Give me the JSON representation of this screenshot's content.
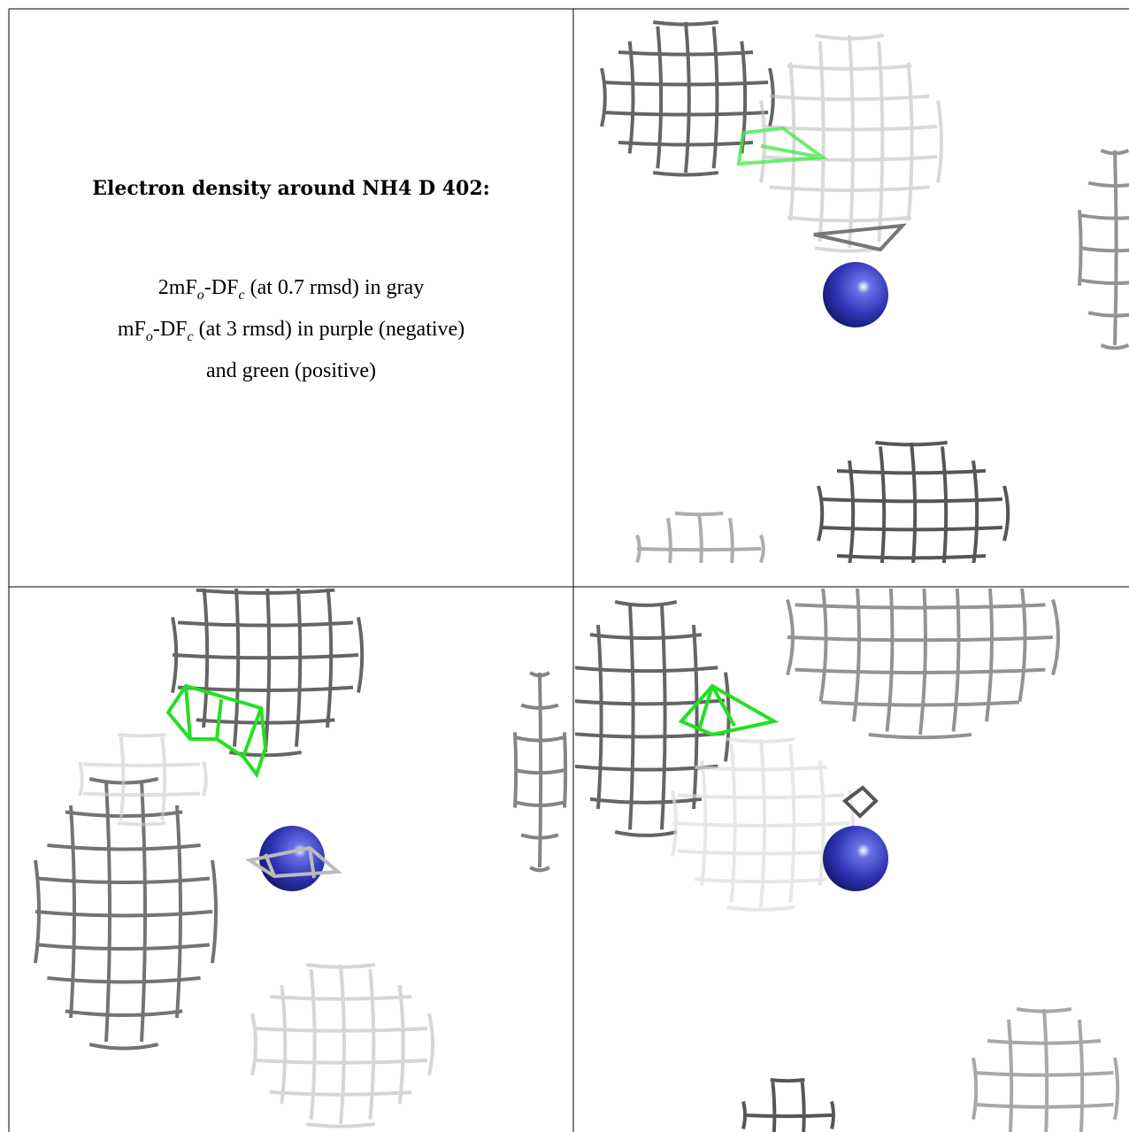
{
  "caption": {
    "title": "Electron density around NH4 D 402:",
    "lines": [
      [
        "2mF",
        "o",
        "-DF",
        "c",
        " (at 0.7 rmsd) in gray"
      ],
      [
        "mF",
        "o",
        "-DF",
        "c",
        " (at 3 rmsd) in purple (negative)"
      ],
      [
        "and green (positive)"
      ]
    ]
  }
}
